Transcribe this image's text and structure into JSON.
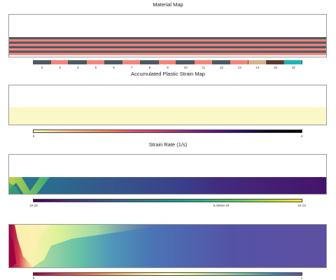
{
  "panels": {
    "material": {
      "title": "Material Map",
      "stripe_colors": [
        "#4d5a63",
        "#f4847a"
      ],
      "legend_ticks": [
        "2",
        "3",
        "4",
        "5",
        "6",
        "7",
        "8",
        "9",
        "10",
        "11",
        "12",
        "13",
        "14",
        "15",
        "16"
      ],
      "legend_colors": [
        "#4d5a63",
        "#f4847a",
        "#4d5a63",
        "#f4847a",
        "#4d5a63",
        "#f4847a",
        "#4d5a63",
        "#f4847a",
        "#4d5a63",
        "#f4847a",
        "#4d5a63",
        "#f4847a",
        "#d9b08c",
        "#5a3a2e",
        "#1fb5b5"
      ]
    },
    "strain": {
      "title": "Accumulated Plastic Strain Map",
      "fill_color": "#fbf8c8",
      "colorbar_min": "0",
      "colorbar_max": "4"
    },
    "rate": {
      "title": "Strain Rate (1/s)",
      "colorbar_min": "1e-18",
      "colorbar_mid": "5.4464e-15",
      "colorbar_max": "1e-13"
    },
    "bottom": {
      "colorbar_min": "0",
      "colorbar_max": "1"
    }
  }
}
